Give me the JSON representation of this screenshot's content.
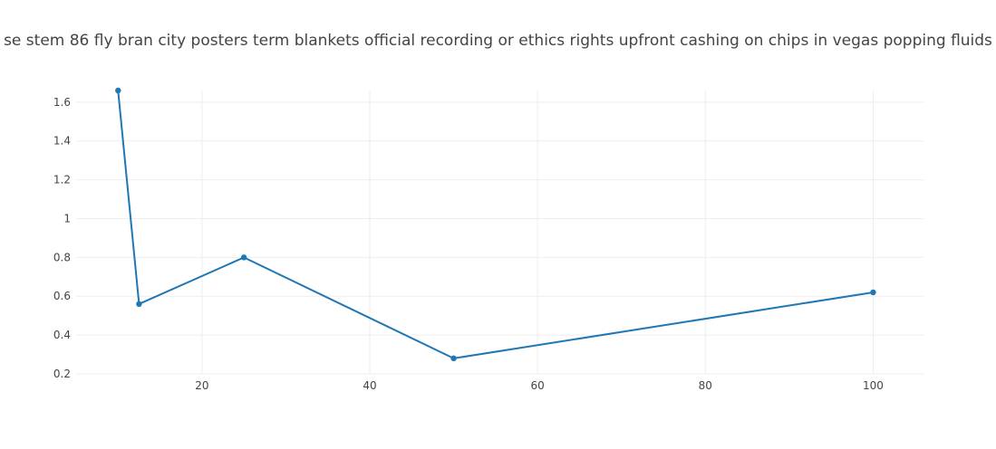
{
  "chart_data": {
    "type": "line",
    "title": "se stem 86 fly bran city posters term blankets official recording or ethics rights upfront cashing on chips in vegas popping fluids",
    "xlabel": "",
    "ylabel": "",
    "xlim": [
      5,
      106
    ],
    "ylim": [
      0.2,
      1.66
    ],
    "x_ticks": [
      20,
      40,
      60,
      80,
      100
    ],
    "y_ticks": [
      0.2,
      0.4,
      0.6,
      0.8,
      1,
      1.2,
      1.4,
      1.6
    ],
    "grid": true,
    "legend": "none",
    "series": [
      {
        "color": "#1f77b4",
        "x": [
          10,
          12.5,
          25,
          50,
          100
        ],
        "y": [
          1.66,
          0.56,
          0.8,
          0.28,
          0.62
        ]
      }
    ]
  }
}
